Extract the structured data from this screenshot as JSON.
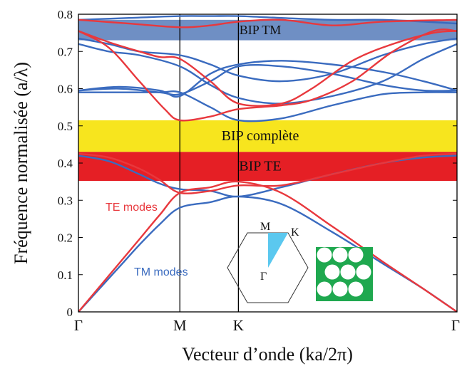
{
  "chart_data": {
    "type": "line",
    "title": "",
    "xlabel": "Vecteur d’onde (ka/2π)",
    "ylabel": "Fréquence normalisée (a/λ)",
    "ylim": [
      0,
      0.8
    ],
    "y_ticks": [
      "0",
      "0.1",
      "0.2",
      "0.3",
      "0.4",
      "0.5",
      "0.6",
      "0.7",
      "0.8"
    ],
    "x_ticks": [
      "Γ",
      "M",
      "K",
      "Γ"
    ],
    "x_tick_positions": [
      0,
      1,
      1.577,
      3.732
    ],
    "colors": {
      "TE": "#e8383d",
      "TM": "#3a6bbf",
      "gap_TM": "#6f8fc4",
      "gap_complete": "#f7e51e",
      "gap_TE": "#e51f25",
      "crystal": "#1fa84f"
    },
    "gaps": [
      {
        "label": "BIP TM",
        "y": [
          0.73,
          0.785
        ]
      },
      {
        "label": "BIP complète",
        "y": [
          0.43,
          0.515
        ]
      },
      {
        "label": "BIP TE",
        "y": [
          0.352,
          0.43
        ]
      }
    ],
    "annotations": {
      "te": "TE modes",
      "tm": "TM modes"
    },
    "inset": {
      "labels": [
        "M",
        "K",
        "Γ"
      ]
    },
    "series": [
      {
        "mode": "TE",
        "x": [
          0,
          0.2,
          0.4,
          0.6,
          0.8,
          1.0,
          1.3,
          1.577,
          2.0,
          2.5,
          3.0,
          3.4,
          3.732
        ],
        "y": [
          0,
          0.065,
          0.13,
          0.195,
          0.26,
          0.32,
          0.335,
          0.35,
          0.32,
          0.23,
          0.135,
          0.062,
          0
        ]
      },
      {
        "mode": "TE",
        "x": [
          0,
          0.3,
          0.6,
          0.8,
          1.0,
          1.3,
          1.577,
          2.0,
          2.5,
          3.0,
          3.4,
          3.732
        ],
        "y": [
          0.425,
          0.415,
          0.385,
          0.355,
          0.32,
          0.325,
          0.34,
          0.34,
          0.37,
          0.4,
          0.42,
          0.425
        ]
      },
      {
        "mode": "TE",
        "x": [
          0,
          0.3,
          0.6,
          0.85,
          1.0,
          1.3,
          1.577,
          2.0,
          2.3,
          2.7,
          3.1,
          3.5,
          3.732
        ],
        "y": [
          0.755,
          0.71,
          0.62,
          0.545,
          0.515,
          0.525,
          0.545,
          0.555,
          0.57,
          0.62,
          0.7,
          0.755,
          0.755
        ]
      },
      {
        "mode": "TE",
        "x": [
          0,
          0.3,
          0.6,
          0.8,
          1.0,
          1.3,
          1.577,
          2.0,
          2.3,
          2.7,
          3.1,
          3.5,
          3.732
        ],
        "y": [
          0.755,
          0.725,
          0.7,
          0.685,
          0.68,
          0.62,
          0.56,
          0.56,
          0.6,
          0.675,
          0.72,
          0.75,
          0.755
        ]
      },
      {
        "mode": "TE",
        "x": [
          0,
          0.5,
          1.0,
          1.3,
          1.577,
          2.0,
          2.5,
          3.0,
          3.732
        ],
        "y": [
          0.785,
          0.775,
          0.765,
          0.77,
          0.78,
          0.785,
          0.77,
          0.78,
          0.785
        ]
      },
      {
        "mode": "TM",
        "x": [
          0,
          0.2,
          0.4,
          0.6,
          0.8,
          1.0,
          1.3,
          1.577,
          2.0,
          2.5,
          3.0,
          3.4,
          3.732
        ],
        "y": [
          0,
          0.06,
          0.12,
          0.18,
          0.235,
          0.28,
          0.295,
          0.31,
          0.29,
          0.215,
          0.13,
          0.062,
          0
        ]
      },
      {
        "mode": "TM",
        "x": [
          0,
          0.3,
          0.6,
          0.8,
          1.0,
          1.3,
          1.577,
          2.0,
          2.5,
          3.0,
          3.4,
          3.732
        ],
        "y": [
          0.42,
          0.405,
          0.37,
          0.345,
          0.33,
          0.325,
          0.31,
          0.335,
          0.37,
          0.4,
          0.415,
          0.42
        ]
      },
      {
        "mode": "TM",
        "x": [
          0,
          0.4,
          0.8,
          1.0,
          1.3,
          1.577,
          2.0,
          2.5,
          3.0,
          3.4,
          3.732
        ],
        "y": [
          0.59,
          0.59,
          0.59,
          0.59,
          0.55,
          0.515,
          0.52,
          0.555,
          0.585,
          0.59,
          0.59
        ]
      },
      {
        "mode": "TM",
        "x": [
          0,
          0.4,
          0.8,
          1.0,
          1.3,
          1.577,
          2.0,
          2.5,
          3.0,
          3.4,
          3.732
        ],
        "y": [
          0.595,
          0.6,
          0.59,
          0.585,
          0.62,
          0.66,
          0.66,
          0.64,
          0.61,
          0.595,
          0.595
        ]
      },
      {
        "mode": "TM",
        "x": [
          0,
          0.4,
          0.8,
          1.0,
          1.3,
          1.577,
          2.0,
          2.5,
          3.0,
          3.4,
          3.732
        ],
        "y": [
          0.595,
          0.605,
          0.595,
          0.58,
          0.64,
          0.665,
          0.675,
          0.665,
          0.645,
          0.62,
          0.595
        ]
      },
      {
        "mode": "TM",
        "x": [
          0,
          0.3,
          0.6,
          1.0,
          1.3,
          1.577,
          2.0,
          2.5,
          3.0,
          3.4,
          3.732
        ],
        "y": [
          0.735,
          0.72,
          0.7,
          0.69,
          0.665,
          0.635,
          0.62,
          0.64,
          0.69,
          0.72,
          0.735
        ]
      },
      {
        "mode": "TM",
        "x": [
          0,
          0.3,
          0.6,
          1.0,
          1.3,
          1.577,
          2.0,
          2.5,
          3.0,
          3.4,
          3.732
        ],
        "y": [
          0.72,
          0.7,
          0.69,
          0.66,
          0.61,
          0.575,
          0.56,
          0.58,
          0.62,
          0.68,
          0.72
        ]
      },
      {
        "mode": "TM",
        "x": [
          0,
          0.5,
          1.0,
          1.3,
          1.577,
          2.0,
          2.5,
          3.0,
          3.4,
          3.732
        ],
        "y": [
          0.785,
          0.79,
          0.795,
          0.795,
          0.795,
          0.79,
          0.785,
          0.785,
          0.78,
          0.775
        ]
      }
    ]
  }
}
